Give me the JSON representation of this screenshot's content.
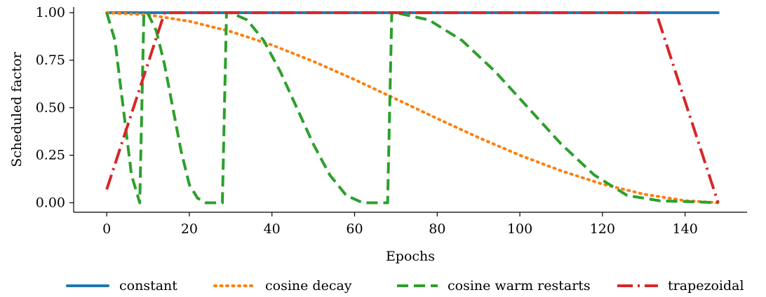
{
  "chart_data": {
    "type": "line",
    "title": "",
    "xlabel": "Epochs",
    "ylabel": "Scheduled factor",
    "xlim": [
      -8,
      155
    ],
    "ylim": [
      -0.05,
      1.03
    ],
    "xticks": [
      0,
      20,
      40,
      60,
      80,
      100,
      120,
      140
    ],
    "yticks": [
      0.0,
      0.25,
      0.5,
      0.75,
      1.0
    ],
    "xtick_labels": [
      "0",
      "20",
      "40",
      "60",
      "80",
      "100",
      "120",
      "140"
    ],
    "ytick_labels": [
      "0.00",
      "0.25",
      "0.50",
      "0.75",
      "1.00"
    ],
    "grid": false,
    "legend_position": "bottom",
    "series": [
      {
        "name": "constant",
        "color": "#1f77b4",
        "style": "solid",
        "x": [
          0,
          148
        ],
        "y": [
          1.0,
          1.0
        ]
      },
      {
        "name": "cosine decay",
        "color": "#ff7f0e",
        "style": "dotted",
        "x": [
          0,
          10,
          20,
          30,
          40,
          50,
          60,
          70,
          80,
          90,
          100,
          110,
          120,
          130,
          140,
          148
        ],
        "y": [
          1.0,
          0.989,
          0.955,
          0.901,
          0.83,
          0.744,
          0.648,
          0.546,
          0.443,
          0.343,
          0.25,
          0.168,
          0.098,
          0.045,
          0.011,
          0.0
        ]
      },
      {
        "name": "cosine warm restarts",
        "color": "#2ca02c",
        "style": "dashed",
        "x": [
          0,
          2,
          4,
          6,
          8,
          9,
          10,
          12,
          14,
          16,
          18,
          20,
          22,
          24,
          26,
          28,
          29,
          30,
          34,
          38,
          42,
          46,
          50,
          54,
          58,
          62,
          66,
          68,
          69,
          70,
          78,
          86,
          94,
          102,
          110,
          118,
          126,
          134,
          142,
          148
        ],
        "y": [
          1.0,
          0.854,
          0.5,
          0.146,
          0.0,
          1.0,
          0.994,
          0.905,
          0.727,
          0.5,
          0.273,
          0.095,
          0.024,
          0.0,
          0.0,
          0.0,
          1.0,
          1.0,
          0.962,
          0.854,
          0.691,
          0.5,
          0.309,
          0.146,
          0.038,
          0.0,
          0.0,
          0.0,
          1.0,
          1.0,
          0.962,
          0.854,
          0.691,
          0.5,
          0.309,
          0.146,
          0.038,
          0.01,
          0.005,
          0.0
        ]
      },
      {
        "name": "trapezoidal",
        "color": "#d62728",
        "style": "dashdot",
        "x": [
          0,
          14,
          133,
          148
        ],
        "y": [
          0.07,
          1.0,
          1.0,
          0.0
        ]
      }
    ]
  }
}
